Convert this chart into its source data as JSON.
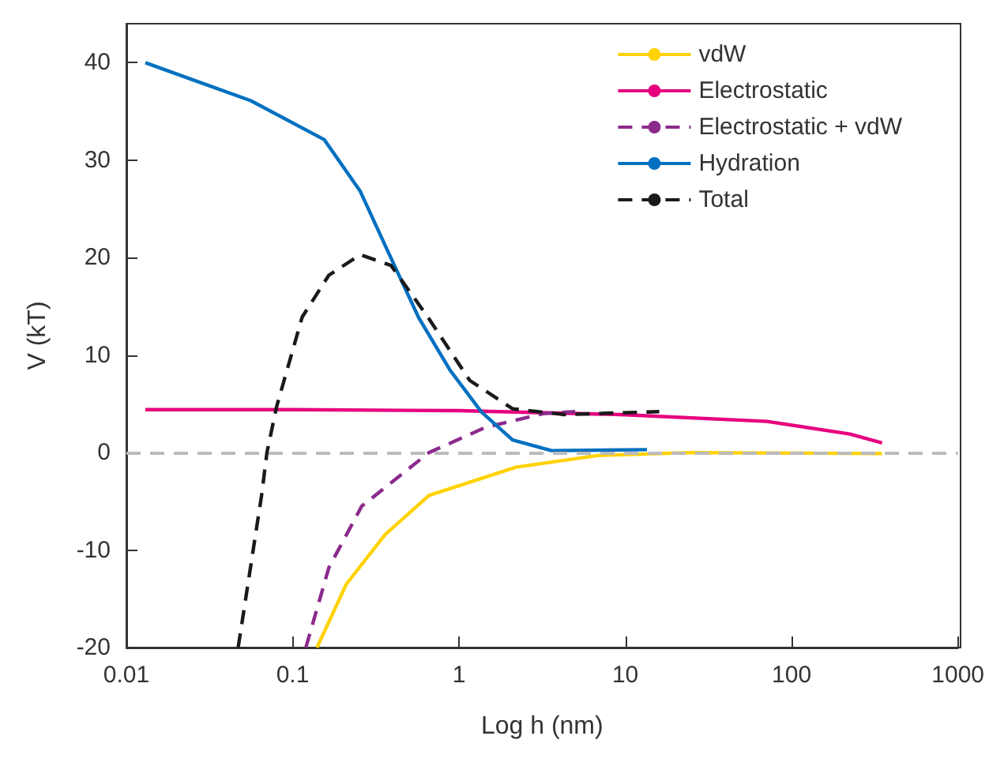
{
  "chart_data": {
    "type": "line",
    "xlabel": "Log h (nm)",
    "ylabel": "V (kT)",
    "log": "x",
    "xlim": [
      0.01,
      1000
    ],
    "xticks": [
      0.01,
      0.1,
      1,
      10,
      100,
      1000
    ],
    "ylim": [
      -20,
      44
    ],
    "yticks": [
      -20,
      -10,
      0,
      10,
      20,
      30,
      40
    ],
    "grid": false,
    "legend": "top right",
    "marker": "none",
    "ref_lines": [
      {
        "axis": "y",
        "value": 0,
        "color": "#bbbbbb",
        "line_style": "dashed"
      }
    ],
    "series": [
      {
        "name": "vdW",
        "color": "#ffd200",
        "line_style": "solid",
        "x": [
          0.14,
          0.21,
          0.36,
          0.66,
          2.2,
          6.8,
          25,
          350
        ],
        "values": [
          -20,
          -13.5,
          -8.4,
          -4.4,
          -1.5,
          -0.3,
          0,
          -0.1
        ]
      },
      {
        "name": "Electrostatic",
        "color": "#e6007e",
        "line_style": "solid",
        "x": [
          0.013,
          0.1,
          1,
          9.4,
          71,
          224,
          350
        ],
        "values": [
          4.4,
          4.4,
          4.3,
          3.9,
          3.2,
          1.9,
          1
        ]
      },
      {
        "name": "Electrostatic + vdW",
        "color": "#8c2a8c",
        "line_style": "dashed",
        "x": [
          0.12,
          0.165,
          0.26,
          0.66,
          1.45,
          3.2,
          5
        ],
        "values": [
          -20,
          -11.8,
          -5.5,
          0,
          2.6,
          4,
          4.2
        ]
      },
      {
        "name": "Hydration",
        "color": "#0070c0",
        "line_style": "solid",
        "x": [
          0.013,
          0.056,
          0.155,
          0.255,
          0.37,
          0.57,
          0.88,
          1.36,
          2.1,
          3.6,
          13.5
        ],
        "values": [
          40,
          36.1,
          32.1,
          26.8,
          20.8,
          13.9,
          8.5,
          4.2,
          1.3,
          0.2,
          0.3
        ]
      },
      {
        "name": "Total",
        "color": "#1a1a1a",
        "line_style": "dashed",
        "x": [
          0.047,
          0.065,
          0.07,
          0.08,
          0.114,
          0.165,
          0.255,
          0.39,
          0.65,
          1.16,
          2.1,
          4.3,
          16
        ],
        "values": [
          -20,
          -4.4,
          0,
          4.7,
          13.9,
          18.2,
          20.3,
          19.2,
          13.9,
          7.4,
          4.5,
          3.9,
          4.2
        ]
      }
    ]
  }
}
